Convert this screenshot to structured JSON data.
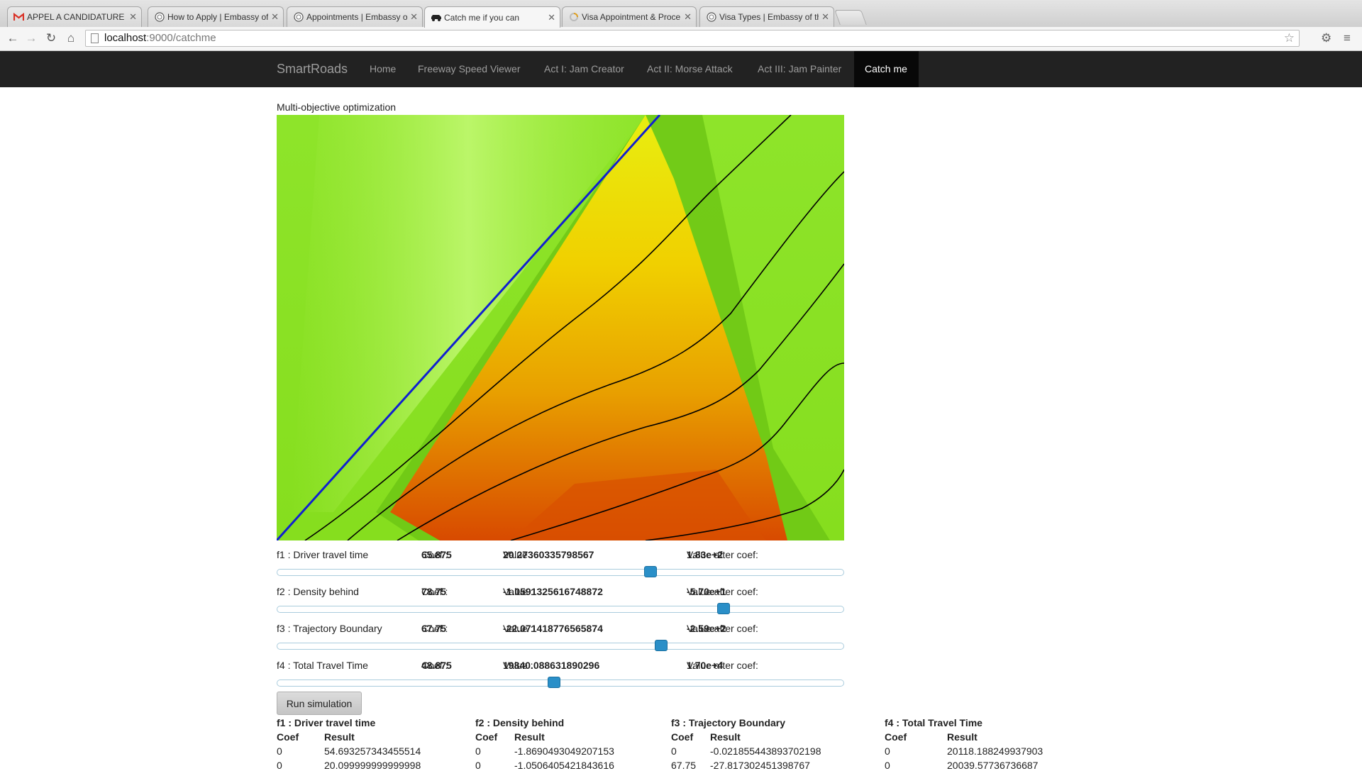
{
  "browser": {
    "tabs": [
      {
        "title": "APPEL A CANDIDATURE : M",
        "icon": "gmail-icon",
        "active": false
      },
      {
        "title": "How to Apply | Embassy of",
        "icon": "embassy-seal-icon",
        "active": false
      },
      {
        "title": "Appointments | Embassy o",
        "icon": "embassy-seal-icon",
        "active": false
      },
      {
        "title": "Catch me if you can",
        "icon": "car-icon",
        "active": true
      },
      {
        "title": "Visa Appointment & Proce",
        "icon": "loading-icon",
        "active": false
      },
      {
        "title": "Visa Types | Embassy of th",
        "icon": "embassy-seal-icon",
        "active": false
      }
    ],
    "url_host": "localhost",
    "url_path": ":9000/catchme"
  },
  "nav": {
    "brand": "SmartRoads",
    "items": [
      {
        "label": "Home",
        "active": false
      },
      {
        "label": "Freeway Speed Viewer",
        "active": false
      },
      {
        "label": "Act I: Jam Creator",
        "active": false
      },
      {
        "label": "Act II: Morse Attack",
        "active": false
      },
      {
        "label": "Act III: Jam Painter",
        "active": false
      },
      {
        "label": "Catch me",
        "active": true
      }
    ]
  },
  "main": {
    "title": "Multi-objective optimization",
    "objectives": [
      {
        "name": "f1 : Driver travel time",
        "coef_label": "Coef : ",
        "coef": "65.875",
        "value_label": "Value : ",
        "value": "20.27360335798567",
        "after_label": "Value after coef: ",
        "after": "1.83e+2",
        "slider_fraction": 0.659
      },
      {
        "name": "f2 : Density behind",
        "coef_label": "Coef : ",
        "coef": "78.75",
        "value_label": "Value : ",
        "value": "-1.0591325616748872",
        "after_label": "Value after coef: ",
        "after": "-5.70e+1",
        "slider_fraction": 0.788
      },
      {
        "name": "f3 : Trajectory Boundary",
        "coef_label": "Coef : ",
        "coef": "67.75",
        "value_label": "Value : ",
        "value": "-22.071418776565874",
        "after_label": "Value after coef: ",
        "after": "-2.59e+2",
        "slider_fraction": 0.678
      },
      {
        "name": "f4 : Total Travel Time",
        "coef_label": "Coef : ",
        "coef": "48.875",
        "value_label": "Value : ",
        "value": "19840.088631890296",
        "after_label": "Value after coef: ",
        "after": "1.70e+4",
        "slider_fraction": 0.489
      }
    ],
    "run_button": "Run simulation",
    "results": [
      {
        "title": "f1 : Driver travel time",
        "col_coef": "Coef",
        "col_result": "Result",
        "rows": [
          [
            "0",
            "54.693257343455514"
          ],
          [
            "0",
            "20.099999999999998"
          ]
        ]
      },
      {
        "title": "f2 : Density behind",
        "col_coef": "Coef",
        "col_result": "Result",
        "rows": [
          [
            "0",
            "-1.8690493049207153"
          ],
          [
            "0",
            "-1.0506405421843616"
          ]
        ]
      },
      {
        "title": "f3 : Trajectory Boundary",
        "col_coef": "Coef",
        "col_result": "Result",
        "rows": [
          [
            "0",
            "-0.021855443893702198"
          ],
          [
            "67.75",
            "-27.817302451398767"
          ]
        ]
      },
      {
        "title": "f4 : Total Travel Time",
        "col_coef": "Coef",
        "col_result": "Result",
        "rows": [
          [
            "0",
            "20118.188249937903"
          ],
          [
            "0",
            "20039.57736736687"
          ]
        ]
      }
    ]
  },
  "colors": {
    "navbar_bg": "#222222",
    "navbar_active_bg": "#080808",
    "slider_handle": "#2a8fc8",
    "trajectory_main": "#1020d0",
    "trajectory_other": "#000000",
    "heat_free": "#8ce820",
    "heat_jam": "#d84a00"
  }
}
